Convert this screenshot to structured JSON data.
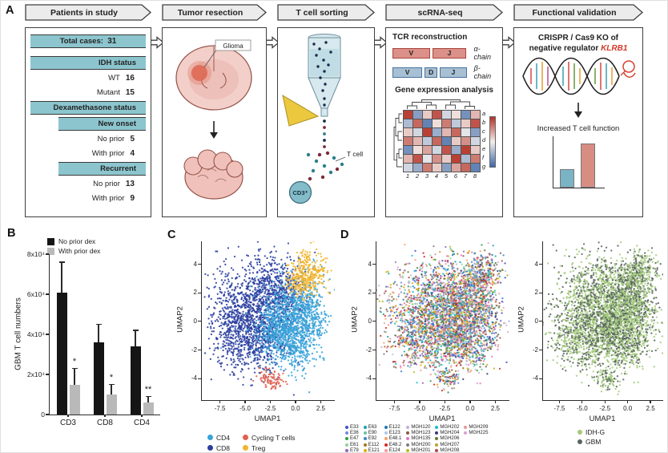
{
  "panel_labels": {
    "a": "A",
    "b": "B",
    "c": "C",
    "d": "D"
  },
  "panel_a": {
    "banners": [
      "Patients in study",
      "Tumor resection",
      "T cell sorting",
      "scRNA-seq",
      "Functional validation"
    ],
    "patients": {
      "total_label": "Total cases:",
      "total_value": "31",
      "idh_header": "IDH status",
      "wt_label": "WT",
      "wt_value": "16",
      "mutant_label": "Mutant",
      "mutant_value": "15",
      "dex_header": "Dexamethasone status",
      "new_onset_header": "New onset",
      "no_prior1_label": "No prior",
      "no_prior1_value": "5",
      "with_prior1_label": "With prior",
      "with_prior1_value": "4",
      "recurrent_header": "Recurrent",
      "no_prior2_label": "No prior",
      "no_prior2_value": "13",
      "with_prior2_label": "With prior",
      "with_prior2_value": "9"
    },
    "tumor_resection": {
      "glioma_label": "Glioma"
    },
    "t_cell_sorting": {
      "t_cell_label": "T cell",
      "cd3_label": "CD3⁺"
    },
    "scrna_seq": {
      "tcr_title": "TCR reconstruction",
      "alpha_segments": [
        "V",
        "J"
      ],
      "alpha_label": "α-chain",
      "beta_segments": [
        "V",
        "D",
        "J"
      ],
      "beta_label": "β-chain",
      "gene_title": "Gene expression analysis",
      "heatmap": {
        "row_labels": [
          "a",
          "b",
          "c",
          "d",
          "e",
          "f",
          "g"
        ],
        "col_labels": [
          "1",
          "2",
          "3",
          "4",
          "5",
          "6",
          "7",
          "8"
        ],
        "values": [
          [
            0.9,
            -0.6,
            0.2,
            0.8,
            -0.2,
            0.1,
            -0.7,
            0.3
          ],
          [
            -0.4,
            0.7,
            -0.8,
            0.1,
            0.6,
            -0.3,
            0.2,
            0.8
          ],
          [
            0.2,
            -0.2,
            0.9,
            -0.5,
            0.3,
            0.7,
            -0.1,
            -0.6
          ],
          [
            0.6,
            0.3,
            -0.3,
            0.7,
            -0.8,
            0.2,
            0.5,
            -0.2
          ],
          [
            -0.7,
            0.1,
            0.4,
            -0.2,
            0.8,
            -0.5,
            0.9,
            0.2
          ],
          [
            0.3,
            0.8,
            -0.1,
            0.5,
            0.2,
            0.9,
            -0.4,
            0.6
          ],
          [
            -0.2,
            -0.5,
            0.6,
            0.2,
            -0.6,
            0.4,
            0.7,
            -0.8
          ]
        ]
      }
    },
    "validation": {
      "title_line1": "CRISPR / Cas9 KO of",
      "title_line2_prefix": "negative regulator ",
      "gene": "KLRB1",
      "result_label": "Increased T cell function"
    }
  },
  "chart_data": [
    {
      "id": "gbm-t-cell-numbers",
      "type": "bar",
      "ylabel": "GBM T cell numbers",
      "categories": [
        "CD3",
        "CD8",
        "CD4"
      ],
      "series": [
        {
          "name": "No prior dex",
          "color": "#151515",
          "values": [
            61000,
            36000,
            34000
          ],
          "errors": [
            15000,
            9000,
            8000
          ]
        },
        {
          "name": "With prior dex",
          "color": "#b9b9b9",
          "values": [
            15000,
            10000,
            6000
          ],
          "errors": [
            8000,
            5000,
            3000
          ]
        }
      ],
      "significance": [
        "*",
        "*",
        "**"
      ],
      "ylim": [
        0,
        80000
      ],
      "ytick_values": [
        0,
        20000,
        40000,
        60000,
        80000
      ],
      "ytick_labels": [
        "0",
        "2x10⁴",
        "4x10⁴",
        "6x10⁴",
        "8x10⁴"
      ]
    },
    {
      "id": "umap-cell-types",
      "type": "scatter",
      "seed": 7,
      "xlabel": "UMAP1",
      "ylabel": "UMAP2",
      "xlim": [
        -9.3,
        3.9
      ],
      "ylim": [
        -5.5,
        5.6
      ],
      "xtick_values": [
        -7.5,
        -5,
        -2.5,
        0,
        2.5
      ],
      "xtick_labels": [
        "-7.5",
        "-5.0",
        "-2.5",
        "0.0",
        "2.5"
      ],
      "ytick_values": [
        4,
        2,
        0,
        -2,
        -4
      ],
      "ytick_labels": [
        "4",
        "2",
        "0",
        "-2",
        "-4"
      ],
      "legend": [
        {
          "label": "CD4",
          "color": "#39a3da"
        },
        {
          "label": "CD8",
          "color": "#2a3f9f"
        },
        {
          "label": "Cycling T cells",
          "color": "#e0604f"
        },
        {
          "label": "Treg",
          "color": "#f0b42f"
        }
      ],
      "clusters": [
        {
          "x": -4.6,
          "y": 0.9,
          "sx": 1.9,
          "sy": 1.7,
          "n": 850,
          "color": "#2a3f9f"
        },
        {
          "x": -2.2,
          "y": 2.3,
          "sx": 1.5,
          "sy": 1.1,
          "n": 320,
          "color": "#2a3f9f"
        },
        {
          "x": -5.6,
          "y": -1.2,
          "sx": 1.4,
          "sy": 1.1,
          "n": 280,
          "color": "#2a3f9f"
        },
        {
          "x": -3.0,
          "y": -1.3,
          "sx": 1.5,
          "sy": 1.2,
          "n": 260,
          "color": "#2a3f9f"
        },
        {
          "x": -0.9,
          "y": 1.6,
          "sx": 1.1,
          "sy": 1.2,
          "n": 200,
          "color": "#2a3f9f"
        },
        {
          "x": -0.3,
          "y": 0.2,
          "sx": 1.5,
          "sy": 1.5,
          "n": 620,
          "color": "#39a3da"
        },
        {
          "x": 1.2,
          "y": 0.7,
          "sx": 1.0,
          "sy": 1.2,
          "n": 300,
          "color": "#39a3da"
        },
        {
          "x": -1.4,
          "y": -1.0,
          "sx": 1.3,
          "sy": 1.0,
          "n": 260,
          "color": "#39a3da"
        },
        {
          "x": 0.2,
          "y": -1.9,
          "sx": 1.0,
          "sy": 0.8,
          "n": 150,
          "color": "#39a3da"
        },
        {
          "x": -2.0,
          "y": -0.2,
          "sx": 0.9,
          "sy": 0.9,
          "n": 150,
          "color": "#39a3da"
        },
        {
          "x": 1.3,
          "y": 3.4,
          "sx": 0.95,
          "sy": 0.75,
          "n": 300,
          "color": "#f0b42f"
        },
        {
          "x": 0.3,
          "y": 2.8,
          "sx": 0.55,
          "sy": 0.5,
          "n": 70,
          "color": "#f0b42f"
        },
        {
          "x": -2.5,
          "y": -4.0,
          "sx": 0.55,
          "sy": 0.35,
          "n": 70,
          "color": "#e0604f"
        },
        {
          "x": -1.7,
          "y": -4.1,
          "sx": 0.4,
          "sy": 0.3,
          "n": 25,
          "color": "#e0604f"
        }
      ]
    },
    {
      "id": "umap-samples",
      "type": "scatter",
      "seed": 11,
      "point_mode": "palette",
      "xlabel": "UMAP1",
      "ylabel": "UMAP2",
      "xlim": [
        -9.3,
        3.9
      ],
      "ylim": [
        -5.5,
        5.6
      ],
      "xtick_values": [
        -7.5,
        -5,
        -2.5,
        0,
        2.5
      ],
      "xtick_labels": [
        "-7.5",
        "-5.0",
        "-2.5",
        "0.0",
        "2.5"
      ],
      "ytick_values": [
        4,
        2,
        0,
        -2,
        -4
      ],
      "ytick_labels": [
        "4",
        "2",
        "0",
        "-2",
        "-4"
      ],
      "legend": [
        {
          "label": "E33",
          "color": "#4350c8"
        },
        {
          "label": "E36",
          "color": "#7887e0"
        },
        {
          "label": "E47",
          "color": "#2f9e44"
        },
        {
          "label": "E61",
          "color": "#8fd19e"
        },
        {
          "label": "E79",
          "color": "#9467bd"
        },
        {
          "label": "E63",
          "color": "#17a2b8"
        },
        {
          "label": "E90",
          "color": "#66c2a5"
        },
        {
          "label": "E92",
          "color": "#3d85c6"
        },
        {
          "label": "E112",
          "color": "#a6761d"
        },
        {
          "label": "E121",
          "color": "#e6ab02"
        },
        {
          "label": "E122",
          "color": "#1f77b4"
        },
        {
          "label": "E123",
          "color": "#aec7e8"
        },
        {
          "label": "E48.1",
          "color": "#f4a261"
        },
        {
          "label": "E48.2",
          "color": "#d62728"
        },
        {
          "label": "E124",
          "color": "#ff9896"
        },
        {
          "label": "MGH120",
          "color": "#c5b0d5"
        },
        {
          "label": "MGH123",
          "color": "#8c564b"
        },
        {
          "label": "MGH135",
          "color": "#e377c2"
        },
        {
          "label": "MGH200",
          "color": "#7f7f7f"
        },
        {
          "label": "MGH201",
          "color": "#bcbd22"
        },
        {
          "label": "MGH202",
          "color": "#17becf"
        },
        {
          "label": "MGH204",
          "color": "#393b79"
        },
        {
          "label": "MGH206",
          "color": "#637939"
        },
        {
          "label": "MGH207",
          "color": "#bd9e39"
        },
        {
          "label": "MGH208",
          "color": "#ad494a"
        },
        {
          "label": "MGH209",
          "color": "#e7969c"
        },
        {
          "label": "MGH225",
          "color": "#de9ed6"
        }
      ],
      "clusters": [
        {
          "x": -4.6,
          "y": 0.9,
          "sx": 1.9,
          "sy": 1.7,
          "n": 850
        },
        {
          "x": -2.2,
          "y": 2.3,
          "sx": 1.5,
          "sy": 1.1,
          "n": 320
        },
        {
          "x": -5.6,
          "y": -1.2,
          "sx": 1.4,
          "sy": 1.1,
          "n": 280
        },
        {
          "x": -3.0,
          "y": -1.3,
          "sx": 1.5,
          "sy": 1.2,
          "n": 260
        },
        {
          "x": -0.9,
          "y": 1.6,
          "sx": 1.1,
          "sy": 1.2,
          "n": 200
        },
        {
          "x": -0.3,
          "y": 0.2,
          "sx": 1.5,
          "sy": 1.5,
          "n": 620
        },
        {
          "x": 1.2,
          "y": 0.7,
          "sx": 1.0,
          "sy": 1.2,
          "n": 300
        },
        {
          "x": -1.4,
          "y": -1.0,
          "sx": 1.3,
          "sy": 1.0,
          "n": 260
        },
        {
          "x": 0.2,
          "y": -1.9,
          "sx": 1.0,
          "sy": 0.8,
          "n": 150
        },
        {
          "x": -2.0,
          "y": -0.2,
          "sx": 0.9,
          "sy": 0.9,
          "n": 150
        },
        {
          "x": 1.3,
          "y": 3.4,
          "sx": 0.95,
          "sy": 0.75,
          "n": 300
        },
        {
          "x": 0.3,
          "y": 2.8,
          "sx": 0.55,
          "sy": 0.5,
          "n": 70
        },
        {
          "x": -2.5,
          "y": -4.0,
          "sx": 0.55,
          "sy": 0.35,
          "n": 70
        },
        {
          "x": -1.7,
          "y": -4.1,
          "sx": 0.4,
          "sy": 0.3,
          "n": 25
        }
      ]
    },
    {
      "id": "umap-idh-gbm",
      "type": "scatter",
      "seed": 23,
      "point_mode": "mix",
      "mix_probability": 0.6,
      "xlabel": "UMAP1",
      "ylabel": "UMAP2",
      "xlim": [
        -9.3,
        3.9
      ],
      "ylim": [
        -5.5,
        5.6
      ],
      "xtick_values": [
        -7.5,
        -5,
        -2.5,
        0,
        2.5
      ],
      "xtick_labels": [
        "-7.5",
        "-5.0",
        "-2.5",
        "0.0",
        "2.5"
      ],
      "ytick_values": [
        4,
        2,
        0,
        -2,
        -4
      ],
      "ytick_labels": [
        "4",
        "2",
        "0",
        "-2",
        "-4"
      ],
      "legend": [
        {
          "label": "IDH-G",
          "color": "#a3c97c"
        },
        {
          "label": "GBM",
          "color": "#59655e"
        }
      ],
      "clusters": [
        {
          "x": -4.6,
          "y": 0.9,
          "sx": 1.9,
          "sy": 1.7,
          "n": 850
        },
        {
          "x": -2.2,
          "y": 2.3,
          "sx": 1.5,
          "sy": 1.1,
          "n": 320
        },
        {
          "x": -5.6,
          "y": -1.2,
          "sx": 1.4,
          "sy": 1.1,
          "n": 280
        },
        {
          "x": -3.0,
          "y": -1.3,
          "sx": 1.5,
          "sy": 1.2,
          "n": 260
        },
        {
          "x": -0.9,
          "y": 1.6,
          "sx": 1.1,
          "sy": 1.2,
          "n": 200
        },
        {
          "x": -0.3,
          "y": 0.2,
          "sx": 1.5,
          "sy": 1.5,
          "n": 620
        },
        {
          "x": 1.2,
          "y": 0.7,
          "sx": 1.0,
          "sy": 1.2,
          "n": 300
        },
        {
          "x": -1.4,
          "y": -1.0,
          "sx": 1.3,
          "sy": 1.0,
          "n": 260
        },
        {
          "x": 0.2,
          "y": -1.9,
          "sx": 1.0,
          "sy": 0.8,
          "n": 150
        },
        {
          "x": -2.0,
          "y": -0.2,
          "sx": 0.9,
          "sy": 0.9,
          "n": 150
        },
        {
          "x": 1.3,
          "y": 3.4,
          "sx": 0.95,
          "sy": 0.75,
          "n": 300
        },
        {
          "x": 0.3,
          "y": 2.8,
          "sx": 0.55,
          "sy": 0.5,
          "n": 70
        },
        {
          "x": -2.5,
          "y": -4.0,
          "sx": 0.55,
          "sy": 0.35,
          "n": 70
        },
        {
          "x": -1.7,
          "y": -4.1,
          "sx": 0.4,
          "sy": 0.3,
          "n": 25
        }
      ]
    },
    {
      "id": "validation-bars",
      "type": "bar",
      "values": [
        1,
        2.4
      ],
      "ymax": 2.7,
      "colors": [
        "#7ab4c4",
        "#d88d83"
      ]
    }
  ]
}
